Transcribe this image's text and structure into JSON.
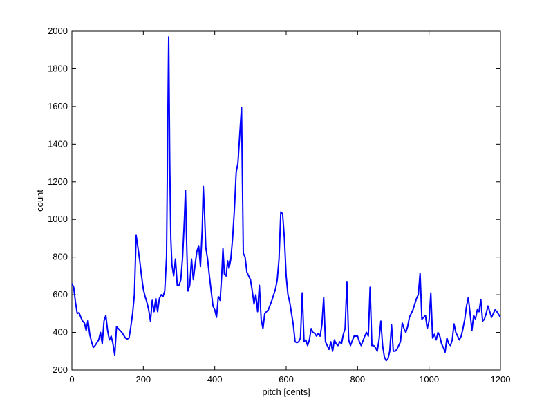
{
  "chart_data": {
    "type": "line",
    "xlabel": "pitch [cents]",
    "ylabel": "count",
    "xlim": [
      0,
      1200
    ],
    "xticks": [
      0,
      200,
      400,
      600,
      800,
      1000,
      1200
    ],
    "ylim": [
      200,
      2000
    ],
    "yticks": [
      200,
      400,
      600,
      800,
      1000,
      1200,
      1400,
      1600,
      1800,
      2000
    ],
    "series": [
      {
        "color": "#0000ff",
        "x": [
          0,
          5,
          10,
          15,
          20,
          25,
          30,
          35,
          40,
          45,
          50,
          55,
          60,
          65,
          70,
          75,
          80,
          85,
          90,
          95,
          100,
          105,
          110,
          115,
          120,
          125,
          130,
          140,
          150,
          155,
          160,
          165,
          170,
          175,
          180,
          185,
          190,
          195,
          200,
          205,
          210,
          215,
          220,
          225,
          230,
          235,
          240,
          245,
          250,
          255,
          260,
          265,
          268,
          271,
          274,
          277,
          280,
          285,
          290,
          295,
          300,
          305,
          310,
          315,
          318,
          321,
          325,
          330,
          335,
          340,
          345,
          350,
          355,
          360,
          365,
          368,
          372,
          375,
          380,
          385,
          390,
          395,
          400,
          405,
          410,
          415,
          420,
          423,
          427,
          432,
          436,
          440,
          445,
          450,
          455,
          460,
          465,
          470,
          475,
          480,
          485,
          490,
          495,
          500,
          505,
          510,
          515,
          520,
          525,
          530,
          535,
          540,
          550,
          560,
          570,
          575,
          580,
          585,
          590,
          595,
          600,
          605,
          610,
          615,
          620,
          625,
          630,
          635,
          640,
          645,
          650,
          655,
          660,
          665,
          670,
          675,
          680,
          685,
          690,
          695,
          700,
          705,
          710,
          715,
          720,
          725,
          730,
          735,
          740,
          745,
          750,
          755,
          760,
          765,
          770,
          775,
          780,
          790,
          800,
          805,
          810,
          820,
          825,
          830,
          835,
          840,
          845,
          850,
          855,
          860,
          865,
          870,
          875,
          880,
          885,
          890,
          895,
          900,
          905,
          910,
          915,
          920,
          925,
          930,
          935,
          940,
          945,
          950,
          955,
          960,
          965,
          970,
          975,
          980,
          985,
          990,
          995,
          1000,
          1005,
          1010,
          1015,
          1020,
          1025,
          1030,
          1035,
          1040,
          1045,
          1050,
          1055,
          1060,
          1065,
          1070,
          1075,
          1080,
          1085,
          1090,
          1095,
          1100,
          1105,
          1110,
          1115,
          1120,
          1125,
          1130,
          1135,
          1140,
          1145,
          1150,
          1155,
          1160,
          1165,
          1170,
          1175,
          1185,
          1190,
          1200
        ],
        "values": [
          660,
          640,
          560,
          500,
          505,
          480,
          460,
          450,
          410,
          465,
          390,
          350,
          320,
          330,
          345,
          360,
          400,
          340,
          460,
          490,
          410,
          360,
          380,
          340,
          280,
          430,
          420,
          400,
          370,
          365,
          370,
          430,
          500,
          600,
          915,
          850,
          780,
          700,
          630,
          590,
          560,
          520,
          460,
          570,
          510,
          580,
          510,
          580,
          600,
          590,
          620,
          800,
          1400,
          1970,
          1300,
          900,
          760,
          700,
          790,
          650,
          650,
          680,
          800,
          1000,
          1155,
          900,
          620,
          650,
          790,
          680,
          760,
          830,
          860,
          750,
          950,
          1175,
          1000,
          850,
          790,
          700,
          620,
          540,
          520,
          480,
          590,
          570,
          720,
          845,
          710,
          700,
          780,
          740,
          790,
          900,
          1050,
          1250,
          1300,
          1450,
          1595,
          820,
          800,
          720,
          700,
          680,
          620,
          550,
          600,
          510,
          650,
          470,
          420,
          500,
          520,
          570,
          630,
          680,
          790,
          1040,
          1030,
          900,
          700,
          600,
          560,
          500,
          440,
          350,
          345,
          350,
          370,
          610,
          350,
          360,
          330,
          360,
          420,
          400,
          395,
          380,
          395,
          380,
          440,
          585,
          350,
          330,
          310,
          350,
          300,
          360,
          340,
          330,
          350,
          340,
          390,
          420,
          670,
          360,
          330,
          380,
          380,
          350,
          330,
          380,
          400,
          380,
          640,
          330,
          330,
          320,
          300,
          360,
          460,
          330,
          270,
          250,
          260,
          300,
          440,
          300,
          300,
          310,
          330,
          350,
          450,
          420,
          400,
          430,
          480,
          500,
          520,
          550,
          580,
          600,
          715,
          470,
          480,
          490,
          420,
          460,
          610,
          370,
          390,
          360,
          400,
          380,
          340,
          320,
          295,
          370,
          340,
          330,
          360,
          445,
          400,
          380,
          360,
          380,
          420,
          470,
          540,
          585,
          500,
          410,
          490,
          470,
          520,
          510,
          575,
          460,
          470,
          500,
          540,
          510,
          480,
          520,
          510,
          480
        ]
      }
    ]
  }
}
